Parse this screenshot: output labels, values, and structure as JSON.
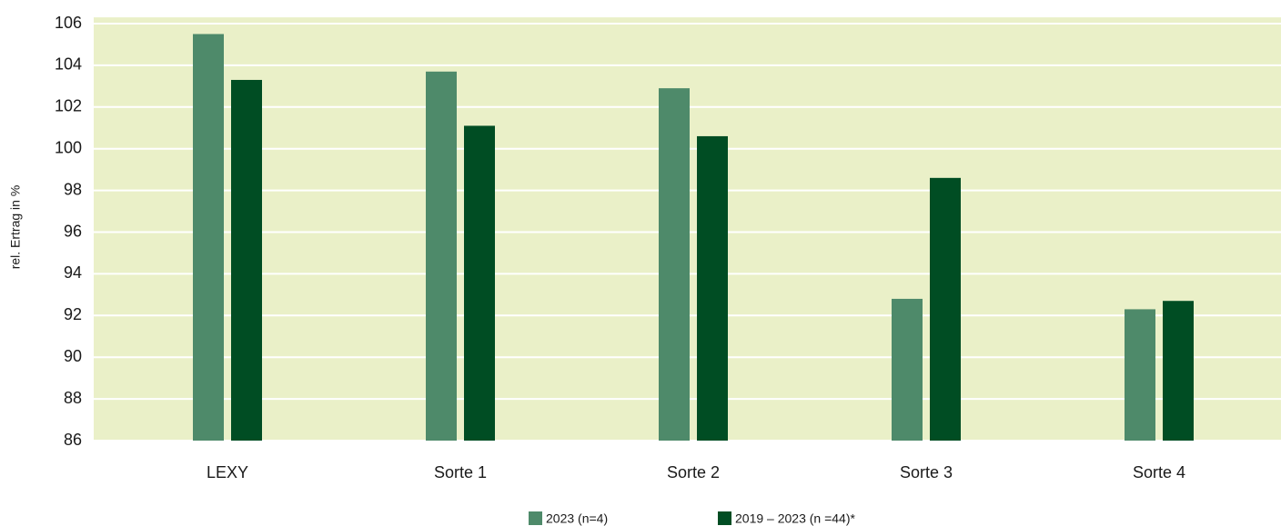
{
  "chart_data": {
    "type": "bar",
    "y_label": "rel. Ertrag in %",
    "categories": [
      "LEXY",
      "Sorte 1",
      "Sorte 2",
      "Sorte 3",
      "Sorte 4"
    ],
    "series": [
      {
        "name": "2023 (n=4)",
        "color": "#4e8a6a",
        "values": [
          105.5,
          103.7,
          102.9,
          92.8,
          92.3
        ]
      },
      {
        "name": "2019 – 2023 (n =44)*",
        "color": "#004d23",
        "values": [
          103.3,
          101.1,
          100.6,
          98.6,
          92.7
        ]
      }
    ],
    "ylim": [
      86,
      106.3
    ],
    "yticks": [
      86,
      88,
      90,
      92,
      94,
      96,
      98,
      100,
      102,
      104,
      106
    ],
    "grid": true,
    "legend": "bottom",
    "background": "#eaf0c8"
  }
}
